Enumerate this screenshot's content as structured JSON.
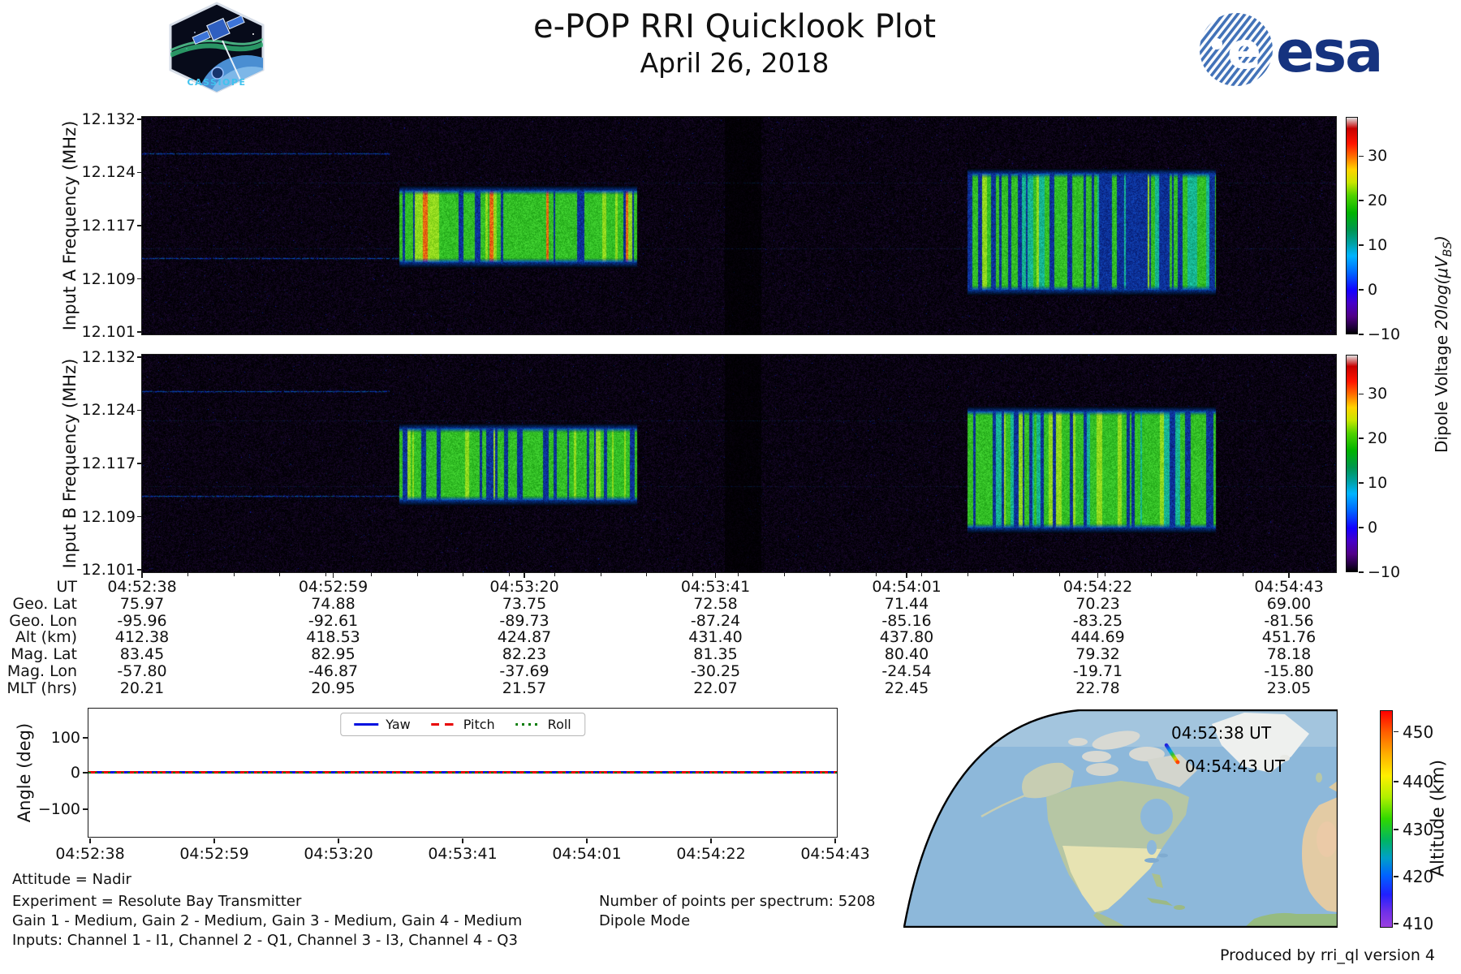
{
  "header": {
    "title": "e-POP RRI Quicklook Plot",
    "date": "April 26, 2018"
  },
  "logos": {
    "cassiope_text": "CASSIOPE",
    "esa_symbol": "e",
    "esa_text": "esa"
  },
  "spectrograms": {
    "a_ylabel": "Input A Frequency (MHz)",
    "b_ylabel": "Input B Frequency (MHz)",
    "freq_ticks": [
      "12.132",
      "12.124",
      "12.117",
      "12.109",
      "12.101"
    ],
    "colorbar": {
      "ticks": [
        "30",
        "20",
        "10",
        "0",
        "−10"
      ],
      "label_text": "Dipole Voltage ",
      "label_math": "20log(μV",
      "label_sub": "BS",
      "label_close": ")"
    }
  },
  "time_ticks": [
    "04:52:38",
    "04:52:59",
    "04:53:20",
    "04:53:41",
    "04:54:01",
    "04:54:22",
    "04:54:43"
  ],
  "ephemeris": {
    "rows": [
      {
        "label": "UT",
        "values": [
          "04:52:38",
          "04:52:59",
          "04:53:20",
          "04:53:41",
          "04:54:01",
          "04:54:22",
          "04:54:43"
        ]
      },
      {
        "label": "Geo. Lat",
        "values": [
          "75.97",
          "74.88",
          "73.75",
          "72.58",
          "71.44",
          "70.23",
          "69.00"
        ]
      },
      {
        "label": "Geo. Lon",
        "values": [
          "-95.96",
          "-92.61",
          "-89.73",
          "-87.24",
          "-85.16",
          "-83.25",
          "-81.56"
        ]
      },
      {
        "label": "Alt (km)",
        "values": [
          "412.38",
          "418.53",
          "424.87",
          "431.40",
          "437.80",
          "444.69",
          "451.76"
        ]
      },
      {
        "label": "Mag. Lat",
        "values": [
          "83.45",
          "82.95",
          "82.23",
          "81.35",
          "80.40",
          "79.32",
          "78.18"
        ]
      },
      {
        "label": "Mag. Lon",
        "values": [
          "-57.80",
          "-46.87",
          "-37.69",
          "-30.25",
          "-24.54",
          "-19.71",
          "-15.80"
        ]
      },
      {
        "label": "MLT (hrs)",
        "values": [
          "20.21",
          "20.95",
          "21.57",
          "22.07",
          "22.45",
          "22.78",
          "23.05"
        ]
      }
    ]
  },
  "angle_plot": {
    "ylabel": "Angle (deg)",
    "yticks": [
      "100",
      "0",
      "−100"
    ],
    "legend": [
      {
        "label": "Yaw",
        "color": "#0010e0",
        "style": "solid"
      },
      {
        "label": "Pitch",
        "color": "#e80000",
        "style": "dashed"
      },
      {
        "label": "Roll",
        "color": "#007a00",
        "style": "dotted"
      }
    ]
  },
  "map": {
    "start_label": "04:52:38 UT",
    "end_label": "04:54:43 UT",
    "colorbar": {
      "ticks": [
        "450",
        "440",
        "430",
        "420",
        "410"
      ],
      "label": "Altitude (km)"
    }
  },
  "annotations": {
    "attitude": "Attitude = Nadir",
    "experiment": "Experiment = Resolute Bay Transmitter",
    "gains": "Gain 1 - Medium, Gain 2 - Medium, Gain 3 - Medium, Gain 4 - Medium",
    "inputs": "Inputs: Channel 1 - I1, Channel 2 - Q1, Channel 3 - I3, Channel 4 - Q3",
    "points": "Number of points per spectrum: 5208",
    "mode": "Dipole Mode",
    "produced": "Produced by rri_ql version 4"
  },
  "chart_data": [
    {
      "type": "heatmap",
      "name": "input_a_spectrogram",
      "xlabel": "UT",
      "ylabel": "Input A Frequency (MHz)",
      "x_range": [
        "04:52:38",
        "04:54:48"
      ],
      "y_range_mhz": [
        12.101,
        12.132
      ],
      "color_scale": {
        "label": "Dipole Voltage 20log(μV_BS)",
        "range": [
          -10,
          38
        ],
        "colormap": "nipy_spectral"
      },
      "background_level": -8,
      "features": [
        {
          "kind": "carrier_line",
          "freq_mhz": 12.127,
          "ut": [
            "04:52:38",
            "04:53:05"
          ]
        },
        {
          "kind": "carrier_line",
          "freq_mhz": 12.1115,
          "ut": [
            "04:52:38",
            "04:53:06"
          ]
        },
        {
          "kind": "faint_line",
          "freq_mhz": 12.1227,
          "ut": [
            "04:52:38",
            "04:54:48"
          ]
        },
        {
          "kind": "faint_line",
          "freq_mhz": 12.113,
          "ut": [
            "04:52:38",
            "04:54:48"
          ]
        },
        {
          "kind": "burst",
          "ut": [
            "04:53:06",
            "04:53:32"
          ],
          "freq_mhz": [
            12.111,
            12.1215
          ],
          "style": "green_red",
          "blue_mid": false,
          "note": "green bars with orange-red streaks"
        },
        {
          "kind": "burst",
          "ut": [
            "04:54:08",
            "04:54:35"
          ],
          "freq_mhz": [
            12.107,
            12.124
          ],
          "style": "green_blue",
          "blue_mid": true,
          "note": "green bars with heavy blue striping"
        }
      ]
    },
    {
      "type": "heatmap",
      "name": "input_b_spectrogram",
      "xlabel": "UT",
      "ylabel": "Input B Frequency (MHz)",
      "x_range": [
        "04:52:38",
        "04:54:48"
      ],
      "y_range_mhz": [
        12.101,
        12.132
      ],
      "color_scale": {
        "label": "Dipole Voltage 20log(μV_BS)",
        "range": [
          -10,
          38
        ],
        "colormap": "nipy_spectral"
      },
      "background_level": -8,
      "features": [
        {
          "kind": "carrier_line",
          "freq_mhz": 12.127,
          "ut": [
            "04:52:38",
            "04:53:05"
          ]
        },
        {
          "kind": "carrier_line",
          "freq_mhz": 12.1115,
          "ut": [
            "04:52:38",
            "04:53:06"
          ]
        },
        {
          "kind": "faint_line",
          "freq_mhz": 12.1227,
          "ut": [
            "04:52:38",
            "04:54:48"
          ]
        },
        {
          "kind": "faint_line",
          "freq_mhz": 12.113,
          "ut": [
            "04:52:38",
            "04:54:48"
          ]
        },
        {
          "kind": "burst",
          "ut": [
            "04:53:06",
            "04:53:32"
          ],
          "freq_mhz": [
            12.111,
            12.1215
          ],
          "style": "green_gaps",
          "blue_mid": false,
          "note": "green bars with dark-blue gaps"
        },
        {
          "kind": "burst",
          "ut": [
            "04:54:08",
            "04:54:35"
          ],
          "freq_mhz": [
            12.107,
            12.124
          ],
          "style": "green_blue",
          "blue_mid": false,
          "note": "green bars with heavy blue striping"
        }
      ]
    },
    {
      "type": "line",
      "name": "attitude_angles",
      "xlabel": "UT",
      "ylabel": "Angle (deg)",
      "x_range": [
        "04:52:38",
        "04:54:43"
      ],
      "ylim": [
        -180,
        180
      ],
      "series": [
        {
          "name": "Yaw",
          "values": [
            0,
            0
          ],
          "x": [
            "04:52:38",
            "04:54:43"
          ]
        },
        {
          "name": "Pitch",
          "values": [
            0,
            0
          ],
          "x": [
            "04:52:38",
            "04:54:43"
          ]
        },
        {
          "name": "Roll",
          "values": [
            0,
            0
          ],
          "x": [
            "04:52:38",
            "04:54:43"
          ]
        }
      ]
    },
    {
      "type": "scatter",
      "name": "ground_track",
      "title": "satellite ground track over northern Canada",
      "colorbar": {
        "label": "Altitude (km)",
        "range": [
          410,
          455
        ]
      },
      "points": [
        {
          "ut": "04:52:38",
          "geo_lat": 75.97,
          "geo_lon": -95.96,
          "alt_km": 412.38
        },
        {
          "ut": "04:54:43",
          "geo_lat": 69.0,
          "geo_lon": -81.56,
          "alt_km": 451.76
        }
      ]
    },
    {
      "type": "table",
      "name": "ephemeris",
      "rows": [
        {
          "label": "UT",
          "values": [
            "04:52:38",
            "04:52:59",
            "04:53:20",
            "04:53:41",
            "04:54:01",
            "04:54:22",
            "04:54:43"
          ]
        },
        {
          "label": "Geo. Lat",
          "values": [
            75.97,
            74.88,
            73.75,
            72.58,
            71.44,
            70.23,
            69.0
          ]
        },
        {
          "label": "Geo. Lon",
          "values": [
            -95.96,
            -92.61,
            -89.73,
            -87.24,
            -85.16,
            -83.25,
            -81.56
          ]
        },
        {
          "label": "Alt (km)",
          "values": [
            412.38,
            418.53,
            424.87,
            431.4,
            437.8,
            444.69,
            451.76
          ]
        },
        {
          "label": "Mag. Lat",
          "values": [
            83.45,
            82.95,
            82.23,
            81.35,
            80.4,
            79.32,
            78.18
          ]
        },
        {
          "label": "Mag. Lon",
          "values": [
            -57.8,
            -46.87,
            -37.69,
            -30.25,
            -24.54,
            -19.71,
            -15.8
          ]
        },
        {
          "label": "MLT (hrs)",
          "values": [
            20.21,
            20.95,
            21.57,
            22.07,
            22.45,
            22.78,
            23.05
          ]
        }
      ]
    }
  ]
}
